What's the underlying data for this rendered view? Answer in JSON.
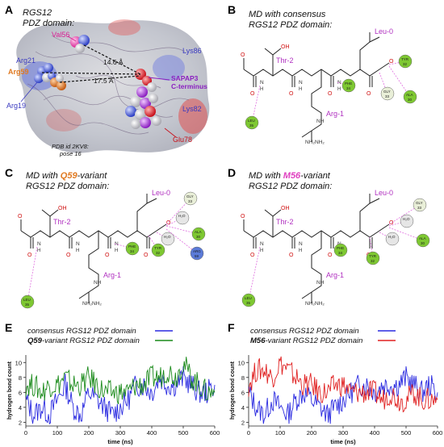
{
  "panels": {
    "A": {
      "letter": "A",
      "title_line1": "RGS12",
      "title_line2": "PDZ domain:",
      "labels": {
        "val56": "Val56",
        "arg21": "Arg21",
        "arg59": "Arg59",
        "arg19": "Arg19",
        "lys86": "Lys86",
        "lys82": "Lys82",
        "glu78": "Glu78",
        "sapap3_1": "SAPAP3",
        "sapap3_2": "C-terminus",
        "d1": "14.6 Å",
        "d2": "17.5 Å",
        "pdb1": "PDB id 2KV8:",
        "pdb2": "pose 16"
      }
    },
    "B": {
      "letter": "B",
      "title_line1": "MD with consensus",
      "title_line2": "RGS12 PDZ domain:"
    },
    "C": {
      "letter": "C",
      "title_pre": "MD with ",
      "title_var": "Q59",
      "title_post": "-variant",
      "title_line2": "RGS12 PDZ domain:"
    },
    "D": {
      "letter": "D",
      "title_pre": "MD with ",
      "title_var": "M56",
      "title_post": "-variant",
      "title_line2": "RGS12 PDZ domain:"
    },
    "E": {
      "letter": "E"
    },
    "F": {
      "letter": "F"
    }
  },
  "molecule_labels": {
    "thr": "Thr-2",
    "leu": "Leu-0",
    "arg": "Arg-1",
    "oh": "OH",
    "o": "O",
    "h": "H",
    "n": "N",
    "nh2": "NH₂",
    "nh": "NH"
  },
  "residue_balls": {
    "B": [
      {
        "name": "TYR",
        "num": "32",
        "color": "#7ec832"
      },
      {
        "name": "PHE",
        "num": "34",
        "color": "#7ec832"
      },
      {
        "name": "GLY",
        "num": "33",
        "color": "#e9efd8"
      },
      {
        "name": "ALA",
        "num": "30",
        "color": "#7ec832"
      },
      {
        "name": "LEU",
        "num": "35",
        "color": "#7ec832"
      }
    ],
    "C": [
      {
        "name": "GLY",
        "num": "33",
        "color": "#e9efd8"
      },
      {
        "name": "H₂O",
        "num": "",
        "color": "#e6e6e6"
      },
      {
        "name": "H₂O",
        "num": "",
        "color": "#e6e6e6"
      },
      {
        "name": "ALA",
        "num": "30",
        "color": "#7ec832"
      },
      {
        "name": "PHE",
        "num": "34",
        "color": "#7ec832"
      },
      {
        "name": "TYR",
        "num": "32",
        "color": "#7ec832"
      },
      {
        "name": "ARG",
        "num": "59",
        "color": "#5b7bd8"
      },
      {
        "name": "LEU",
        "num": "35",
        "color": "#7ec832"
      }
    ],
    "D": [
      {
        "name": "GLY",
        "num": "33",
        "color": "#e9efd8"
      },
      {
        "name": "H₂O",
        "num": "",
        "color": "#e6e6e6"
      },
      {
        "name": "H₂O",
        "num": "",
        "color": "#e6e6e6"
      },
      {
        "name": "ALA",
        "num": "30",
        "color": "#7ec832"
      },
      {
        "name": "PHE",
        "num": "34",
        "color": "#7ec832"
      },
      {
        "name": "TYR",
        "num": "32",
        "color": "#7ec832"
      },
      {
        "name": "LEU",
        "num": "35",
        "color": "#7ec832"
      }
    ]
  },
  "chart_data": [
    {
      "type": "line",
      "panel": "E",
      "xlabel": "time (ns)",
      "ylabel": "hydrogen bond count",
      "xlim": [
        0,
        600
      ],
      "ylim": [
        1.5,
        11
      ],
      "x_ticks": [
        0,
        100,
        200,
        300,
        400,
        500,
        600
      ],
      "y_ticks": [
        2,
        4,
        6,
        8,
        10
      ],
      "legend_position": "top-center",
      "x": [
        0,
        25,
        50,
        75,
        100,
        125,
        150,
        175,
        200,
        225,
        250,
        275,
        300,
        325,
        350,
        375,
        400,
        425,
        450,
        475,
        500,
        525,
        550,
        575,
        600
      ],
      "series": [
        {
          "name": "consensus RGS12 PDZ domain",
          "color": "#2a2ae0",
          "values": [
            5,
            3,
            4,
            3,
            5,
            7,
            4,
            3,
            6,
            5,
            4,
            3,
            4,
            5,
            7,
            7,
            6,
            8,
            7,
            7,
            8,
            7,
            6,
            6,
            7
          ]
        },
        {
          "name": "Q59-variant RGS12 PDZ domain",
          "color": "#1a8a1a",
          "values": [
            7,
            7,
            6,
            7,
            7,
            8,
            7,
            7,
            8,
            7,
            6,
            6,
            6,
            6,
            7,
            7,
            8,
            8,
            9,
            8,
            10,
            8,
            7,
            6,
            6
          ]
        }
      ]
    },
    {
      "type": "line",
      "panel": "F",
      "xlabel": "time (ns)",
      "ylabel": "hydrogen bond count",
      "xlim": [
        0,
        600
      ],
      "ylim": [
        1.5,
        11
      ],
      "x_ticks": [
        0,
        100,
        200,
        300,
        400,
        500,
        600
      ],
      "y_ticks": [
        2,
        4,
        6,
        8,
        10
      ],
      "legend_position": "top-center",
      "x": [
        0,
        25,
        50,
        75,
        100,
        125,
        150,
        175,
        200,
        225,
        250,
        275,
        300,
        325,
        350,
        375,
        400,
        425,
        450,
        475,
        500,
        525,
        550,
        575,
        600
      ],
      "series": [
        {
          "name": "consensus RGS12 PDZ domain",
          "color": "#2a2ae0",
          "values": [
            6,
            4,
            3,
            5,
            4,
            3,
            5,
            6,
            5,
            4,
            3,
            4,
            5,
            6,
            7,
            7,
            6,
            7,
            7,
            7,
            8,
            7,
            6,
            7,
            6
          ]
        },
        {
          "name": "M56-variant RGS12 PDZ domain",
          "color": "#e02020",
          "values": [
            7,
            9,
            9,
            8,
            10,
            9,
            8,
            7,
            7,
            6,
            6,
            7,
            7,
            6,
            6,
            6,
            6,
            5,
            6,
            5,
            5,
            6,
            5,
            5,
            5
          ]
        }
      ]
    }
  ],
  "legend_E": {
    "line1": "consensus RGS12 PDZ domain",
    "line2_bold": "Q59",
    "line2_rest": "-variant RGS12 PDZ domain"
  },
  "legend_F": {
    "line1": "consensus RGS12 PDZ domain",
    "line2_bold": "M56",
    "line2_rest": "-variant RGS12 PDZ domain"
  }
}
